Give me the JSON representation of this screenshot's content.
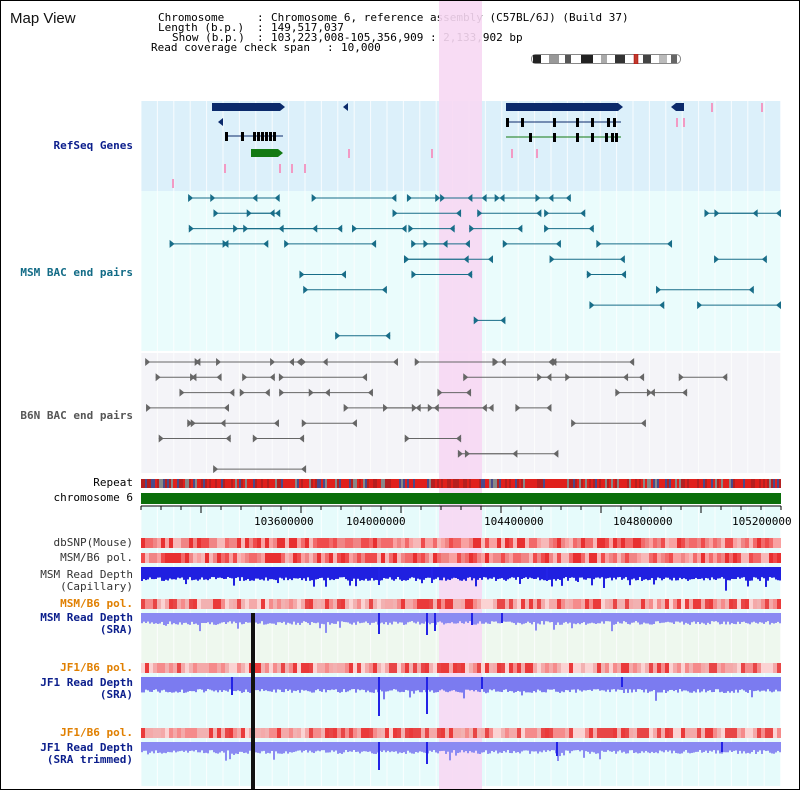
{
  "view": {
    "title": "Map View",
    "header": {
      "chromosome_label": "Chromosome",
      "chromosome_value": "Chromosome 6, reference assembly (C57BL/6J) (Build 37)",
      "length_label": "Length (b.p.)",
      "length_value": "149,517,037",
      "show_label": "Show (b.p.)",
      "show_value": "103,223,008-105,356,909 : 2,133,902 bp",
      "coverage_label": "Read coverage check span",
      "coverage_value": "10,000"
    },
    "tracks": {
      "refseq": "RefSeq Genes",
      "msm_bac": "MSM BAC end pairs",
      "b6n_bac": "B6N BAC end pairs",
      "repeat": "Repeat",
      "chromosome": "chromosome 6",
      "dbsnp": "dbSNP(Mouse)",
      "msm_b6_pol_1": "MSM/B6 pol.",
      "msm_depth_cap_1": "MSM Read Depth",
      "msm_depth_cap_2": "(Capillary)",
      "msm_b6_pol_2": "MSM/B6 pol.",
      "msm_depth_sra_1": "MSM Read Depth",
      "msm_depth_sra_2": "(SRA)",
      "jf1_b6_pol_1": "JF1/B6 pol.",
      "jf1_depth_sra_1": "JF1 Read Depth",
      "jf1_depth_sra_2": "(SRA)",
      "jf1_b6_pol_2": "JF1/B6 pol.",
      "jf1_depth_trim_1": "JF1 Read Depth",
      "jf1_depth_trim_2": "(SRA trimmed)"
    },
    "axis_ticks": [
      "103600000",
      "104000000",
      "104400000",
      "104800000",
      "105200000"
    ],
    "colors": {
      "refseq_bg": "#dcf0fa",
      "bac_bg": "#eafcfc",
      "b6n_bg": "#f4f4f8",
      "lower_bg": "#e6fbfb",
      "msm_sra_bg": "#eef8ee",
      "highlight": "#f7d8f3",
      "chromosome_bar": "#0a6e0a",
      "gene_dark": "#0b2a6b",
      "gene_green": "#137a13",
      "bac_teal": "#186d88",
      "bac_grey": "#666666",
      "depth_blue": "#2323e6",
      "depth_light": "#7f7ff0"
    }
  }
}
